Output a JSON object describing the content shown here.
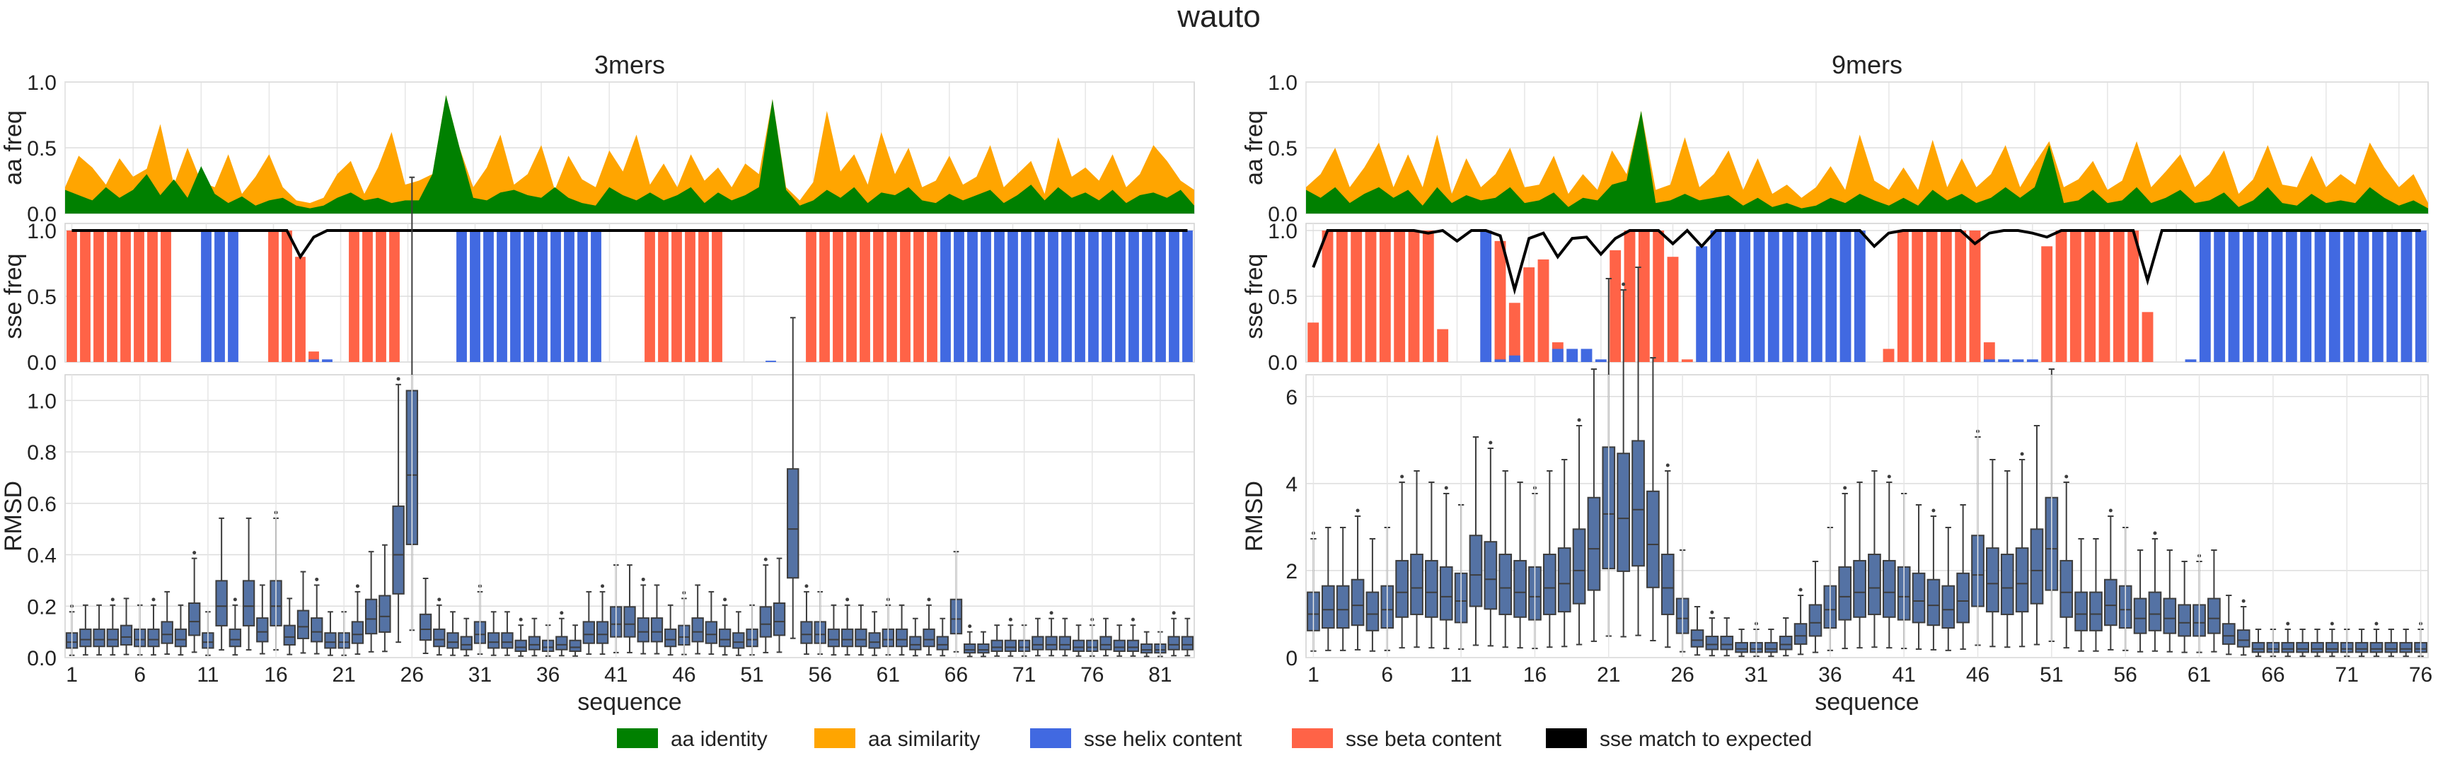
{
  "figure_title": "wauto",
  "legend": [
    {
      "label": "aa identity",
      "color": "#008000"
    },
    {
      "label": "aa similarity",
      "color": "#ffa500"
    },
    {
      "label": "sse helix content",
      "color": "#4169e1"
    },
    {
      "label": "sse beta content",
      "color": "#ff6347"
    },
    {
      "label": "sse match to expected",
      "color": "#000000"
    }
  ],
  "chart_data": [
    {
      "type": "area",
      "panel": "3mers aa frequency",
      "title": "3mers",
      "ylabel": "aa freq",
      "ylim": [
        0,
        1
      ],
      "yticks": [
        "0.0",
        "0.5",
        "1.0"
      ],
      "x_count": 84,
      "series": [
        {
          "name": "aa similarity",
          "color": "#ffa500",
          "values": [
            0.2,
            0.44,
            0.35,
            0.22,
            0.42,
            0.28,
            0.34,
            0.68,
            0.22,
            0.5,
            0.24,
            0.2,
            0.45,
            0.15,
            0.28,
            0.45,
            0.2,
            0.1,
            0.08,
            0.12,
            0.3,
            0.4,
            0.15,
            0.35,
            0.62,
            0.22,
            0.25,
            0.3,
            0.9,
            0.5,
            0.2,
            0.35,
            0.6,
            0.22,
            0.3,
            0.52,
            0.18,
            0.44,
            0.26,
            0.2,
            0.48,
            0.32,
            0.6,
            0.22,
            0.38,
            0.2,
            0.45,
            0.25,
            0.35,
            0.2,
            0.38,
            0.3,
            0.87,
            0.2,
            0.1,
            0.24,
            0.78,
            0.32,
            0.45,
            0.22,
            0.62,
            0.3,
            0.5,
            0.2,
            0.25,
            0.44,
            0.22,
            0.28,
            0.52,
            0.2,
            0.3,
            0.4,
            0.15,
            0.58,
            0.28,
            0.35,
            0.25,
            0.45,
            0.2,
            0.3,
            0.52,
            0.4,
            0.25,
            0.18
          ]
        },
        {
          "name": "aa identity",
          "color": "#008000",
          "values": [
            0.18,
            0.14,
            0.1,
            0.2,
            0.12,
            0.18,
            0.3,
            0.14,
            0.26,
            0.12,
            0.36,
            0.15,
            0.08,
            0.13,
            0.06,
            0.1,
            0.12,
            0.06,
            0.04,
            0.06,
            0.12,
            0.16,
            0.1,
            0.12,
            0.08,
            0.1,
            0.1,
            0.3,
            0.9,
            0.5,
            0.12,
            0.1,
            0.16,
            0.18,
            0.14,
            0.12,
            0.2,
            0.12,
            0.08,
            0.06,
            0.2,
            0.14,
            0.1,
            0.16,
            0.1,
            0.14,
            0.2,
            0.08,
            0.16,
            0.1,
            0.14,
            0.2,
            0.87,
            0.18,
            0.06,
            0.1,
            0.18,
            0.12,
            0.2,
            0.08,
            0.16,
            0.14,
            0.2,
            0.1,
            0.08,
            0.15,
            0.1,
            0.14,
            0.18,
            0.08,
            0.14,
            0.22,
            0.1,
            0.2,
            0.12,
            0.16,
            0.1,
            0.18,
            0.08,
            0.14,
            0.16,
            0.12,
            0.18,
            0.06
          ]
        }
      ]
    },
    {
      "type": "bar",
      "panel": "3mers sse frequency",
      "ylabel": "sse freq",
      "ylim": [
        0,
        1
      ],
      "yticks": [
        "0.0",
        "0.5",
        "1.0"
      ],
      "x_count": 84,
      "beta": [
        1,
        1,
        1,
        1,
        1,
        1,
        1,
        1,
        0,
        0,
        0,
        0,
        0,
        0,
        0,
        1,
        1,
        0.8,
        0.08,
        0,
        0,
        1,
        1,
        1,
        1,
        0,
        0,
        0,
        0,
        0,
        0,
        0,
        0,
        0,
        0,
        0,
        0,
        0,
        0,
        0,
        0,
        0,
        0,
        1,
        1,
        1,
        1,
        1,
        1,
        0,
        0,
        0,
        0,
        0,
        0,
        1,
        1,
        1,
        1,
        1,
        1,
        1,
        1,
        1,
        1,
        0,
        0,
        0,
        0,
        0,
        0,
        0,
        0,
        0,
        0,
        0,
        0,
        0,
        0,
        0,
        0,
        0,
        0,
        0
      ],
      "helix": [
        0,
        0,
        0,
        0,
        0,
        0,
        0,
        0,
        0,
        0,
        1,
        1,
        1,
        0,
        0,
        0,
        0,
        0,
        0.02,
        0.02,
        0,
        0,
        0,
        0,
        0,
        0,
        0,
        0,
        0,
        1,
        1,
        1,
        1,
        1,
        1,
        1,
        1,
        1,
        1,
        1,
        0,
        0,
        0,
        0,
        0,
        0,
        0,
        0,
        0,
        0,
        0,
        0,
        0.01,
        0,
        0,
        0,
        0,
        0,
        0,
        0,
        0,
        0,
        0,
        0,
        0,
        1,
        1,
        1,
        1,
        1,
        1,
        1,
        1,
        1,
        1,
        1,
        1,
        1,
        1,
        1,
        1,
        1,
        1,
        1
      ],
      "match": [
        1,
        1,
        1,
        1,
        1,
        1,
        1,
        1,
        1,
        1,
        1,
        1,
        1,
        1,
        1,
        1,
        1,
        0.8,
        0.95,
        1,
        1,
        1,
        1,
        1,
        1,
        1,
        1,
        1,
        1,
        1,
        1,
        1,
        1,
        1,
        1,
        1,
        1,
        1,
        1,
        1,
        1,
        1,
        1,
        1,
        1,
        1,
        1,
        1,
        1,
        1,
        1,
        1,
        1,
        1,
        1,
        1,
        1,
        1,
        1,
        1,
        1,
        1,
        1,
        1,
        1,
        1,
        1,
        1,
        1,
        1,
        1,
        1,
        1,
        1,
        1,
        1,
        1,
        1,
        1,
        1,
        1,
        1,
        1,
        1
      ]
    },
    {
      "type": "box",
      "panel": "3mers RMSD",
      "ylabel": "RMSD",
      "xlabel": "sequence",
      "ylim": [
        0,
        1.1
      ],
      "yticks": [
        "0.0",
        "0.2",
        "0.4",
        "0.6",
        "0.8",
        "1.0"
      ],
      "xtick_labels": [
        "1",
        "6",
        "11",
        "16",
        "21",
        "26",
        "31",
        "36",
        "41",
        "46",
        "51",
        "56",
        "61",
        "66",
        "71",
        "76",
        "81"
      ],
      "x_count": 83,
      "medians": [
        0.06,
        0.07,
        0.07,
        0.07,
        0.08,
        0.07,
        0.07,
        0.09,
        0.07,
        0.14,
        0.06,
        0.2,
        0.07,
        0.2,
        0.1,
        0.2,
        0.08,
        0.12,
        0.1,
        0.06,
        0.06,
        0.09,
        0.15,
        0.16,
        0.4,
        0.71,
        0.11,
        0.07,
        0.06,
        0.05,
        0.09,
        0.06,
        0.06,
        0.04,
        0.05,
        0.04,
        0.05,
        0.04,
        0.09,
        0.09,
        0.13,
        0.13,
        0.1,
        0.1,
        0.07,
        0.08,
        0.1,
        0.09,
        0.07,
        0.06,
        0.07,
        0.13,
        0.14,
        0.5,
        0.09,
        0.09,
        0.07,
        0.07,
        0.07,
        0.06,
        0.07,
        0.07,
        0.05,
        0.07,
        0.05,
        0.15,
        0.03,
        0.03,
        0.04,
        0.04,
        0.04,
        0.05,
        0.05,
        0.05,
        0.04,
        0.04,
        0.05,
        0.04,
        0.04,
        0.03,
        0.03,
        0.05,
        0.05
      ]
    },
    {
      "type": "area",
      "panel": "9mers aa frequency",
      "title": "9mers",
      "ylabel": "aa freq",
      "ylim": [
        0,
        1
      ],
      "yticks": [
        "0.0",
        "0.5",
        "1.0"
      ],
      "x_count": 78,
      "series": [
        {
          "name": "aa similarity",
          "color": "#ffa500",
          "values": [
            0.2,
            0.3,
            0.5,
            0.2,
            0.35,
            0.54,
            0.2,
            0.45,
            0.2,
            0.6,
            0.15,
            0.42,
            0.2,
            0.3,
            0.5,
            0.2,
            0.22,
            0.44,
            0.15,
            0.3,
            0.18,
            0.48,
            0.3,
            0.78,
            0.18,
            0.22,
            0.58,
            0.2,
            0.3,
            0.48,
            0.18,
            0.42,
            0.15,
            0.22,
            0.12,
            0.2,
            0.36,
            0.18,
            0.6,
            0.25,
            0.18,
            0.35,
            0.18,
            0.56,
            0.2,
            0.42,
            0.2,
            0.3,
            0.52,
            0.2,
            0.38,
            0.55,
            0.2,
            0.26,
            0.4,
            0.18,
            0.25,
            0.55,
            0.2,
            0.32,
            0.45,
            0.2,
            0.3,
            0.48,
            0.15,
            0.26,
            0.52,
            0.22,
            0.2,
            0.44,
            0.2,
            0.3,
            0.22,
            0.54,
            0.35,
            0.2,
            0.3,
            0.08
          ]
        },
        {
          "name": "aa identity",
          "color": "#008000",
          "values": [
            0.18,
            0.12,
            0.2,
            0.08,
            0.15,
            0.2,
            0.12,
            0.18,
            0.06,
            0.2,
            0.08,
            0.14,
            0.1,
            0.12,
            0.2,
            0.08,
            0.1,
            0.16,
            0.05,
            0.12,
            0.1,
            0.22,
            0.25,
            0.78,
            0.08,
            0.1,
            0.15,
            0.1,
            0.12,
            0.14,
            0.06,
            0.12,
            0.05,
            0.08,
            0.04,
            0.06,
            0.12,
            0.08,
            0.15,
            0.1,
            0.06,
            0.12,
            0.06,
            0.18,
            0.1,
            0.15,
            0.08,
            0.12,
            0.2,
            0.12,
            0.2,
            0.52,
            0.08,
            0.1,
            0.18,
            0.08,
            0.1,
            0.2,
            0.08,
            0.12,
            0.18,
            0.08,
            0.1,
            0.16,
            0.05,
            0.1,
            0.2,
            0.08,
            0.06,
            0.15,
            0.08,
            0.1,
            0.08,
            0.2,
            0.12,
            0.06,
            0.1,
            0.04
          ]
        }
      ]
    },
    {
      "type": "bar",
      "panel": "9mers sse frequency",
      "ylabel": "sse freq",
      "ylim": [
        0,
        1
      ],
      "yticks": [
        "0.0",
        "0.5",
        "1.0"
      ],
      "x_count": 78,
      "beta": [
        0.3,
        1,
        1,
        1,
        1,
        1,
        1,
        1,
        1,
        0.25,
        0,
        0,
        0,
        0.92,
        0.45,
        0.72,
        0.78,
        0.15,
        0,
        0,
        0,
        0.85,
        1,
        1,
        1,
        0.8,
        0.02,
        0,
        0,
        0,
        0,
        0,
        0,
        0,
        0,
        0,
        0,
        0,
        0,
        0,
        0.1,
        1,
        1,
        1,
        1,
        1,
        1,
        0.15,
        0,
        0,
        0,
        0.88,
        1,
        1,
        1,
        1,
        1,
        1,
        0.38,
        0,
        0,
        0,
        0,
        0,
        0,
        0,
        0,
        0,
        0,
        0,
        0,
        0,
        0,
        0,
        0,
        0,
        0,
        0
      ],
      "helix": [
        0,
        0,
        0,
        0,
        0,
        0,
        0,
        0,
        0,
        0,
        0,
        0,
        1,
        0.02,
        0.05,
        0,
        0,
        0.1,
        0.1,
        0.1,
        0.02,
        0,
        0,
        0,
        0,
        0,
        0,
        0.88,
        1,
        1,
        1,
        1,
        1,
        1,
        1,
        1,
        1,
        1,
        1,
        0,
        0,
        0,
        0,
        0,
        0,
        0,
        0,
        0.02,
        0.02,
        0.02,
        0.02,
        0,
        0,
        0,
        0,
        0,
        0,
        0,
        0,
        0,
        0,
        0.02,
        1,
        1,
        1,
        1,
        1,
        1,
        1,
        1,
        1,
        1,
        1,
        1,
        1,
        1,
        1,
        1
      ],
      "match": [
        0.72,
        1,
        1,
        1,
        1,
        1,
        1,
        1,
        0.98,
        1,
        0.92,
        1,
        1,
        0.96,
        0.55,
        0.94,
        0.98,
        0.8,
        0.94,
        0.95,
        0.82,
        0.94,
        1,
        1,
        1,
        0.9,
        1,
        0.88,
        1,
        1,
        1,
        1,
        1,
        1,
        1,
        1,
        1,
        1,
        1,
        0.88,
        0.98,
        1,
        1,
        1,
        1,
        1,
        0.9,
        0.98,
        1,
        1,
        0.98,
        0.95,
        1,
        1,
        1,
        1,
        1,
        1,
        0.62,
        1,
        1,
        1,
        1,
        1,
        1,
        1,
        1,
        1,
        1,
        1,
        1,
        1,
        1,
        1,
        1,
        1,
        1,
        1
      ]
    },
    {
      "type": "box",
      "panel": "9mers RMSD",
      "ylabel": "RMSD",
      "xlabel": "sequence",
      "ylim": [
        0,
        6.5
      ],
      "yticks": [
        "0",
        "2",
        "4",
        "6"
      ],
      "xtick_labels": [
        "1",
        "6",
        "11",
        "16",
        "21",
        "26",
        "31",
        "36",
        "41",
        "46",
        "51",
        "56",
        "61",
        "66",
        "71",
        "76"
      ],
      "x_count": 76,
      "medians": [
        1.0,
        1.1,
        1.1,
        1.2,
        1.0,
        1.1,
        1.5,
        1.6,
        1.5,
        1.4,
        1.3,
        1.9,
        1.8,
        1.6,
        1.5,
        1.4,
        1.6,
        1.7,
        2.0,
        2.5,
        3.3,
        3.2,
        3.4,
        2.6,
        1.6,
        0.9,
        0.4,
        0.3,
        0.3,
        0.2,
        0.2,
        0.2,
        0.3,
        0.5,
        0.8,
        1.1,
        1.4,
        1.5,
        1.6,
        1.5,
        1.4,
        1.3,
        1.2,
        1.1,
        1.3,
        1.9,
        1.7,
        1.6,
        1.7,
        2.0,
        2.5,
        1.5,
        1.0,
        1.0,
        1.2,
        1.1,
        0.9,
        1.0,
        0.9,
        0.8,
        0.8,
        0.9,
        0.5,
        0.4,
        0.2,
        0.2,
        0.2,
        0.2,
        0.2,
        0.2,
        0.2,
        0.2,
        0.2,
        0.2,
        0.2,
        0.2
      ]
    }
  ]
}
